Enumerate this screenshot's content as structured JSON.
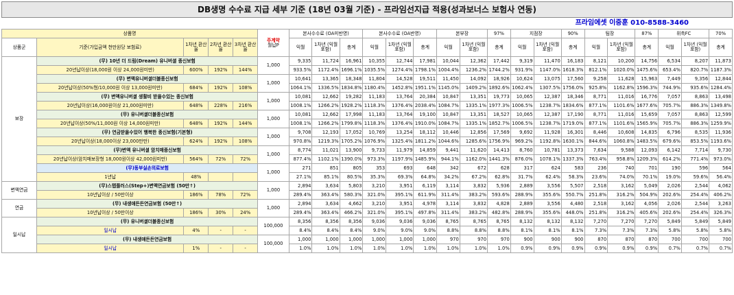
{
  "title": "DB생명 수수료 지급 세부 기준 (18년 03월 기준) - 프라임선지급 적용(성과보너스 보험사 연동)",
  "contact": "프라임에셋 이중훈 010-8588-3460",
  "header": {
    "product": "상품명",
    "category": "상품군",
    "criteria": "기준(가입금액 천만원당 보험료)",
    "hw1": "1차년 환산율",
    "hw2": "2차년 환산율",
    "hw3": "3차년 환산율",
    "premium_top": "주계약",
    "premium_bottom": "월납P",
    "groups": [
      {
        "name": "본사수수료 (OA미반영)",
        "pct": ""
      },
      {
        "name": "본사수수료 (OA반영)",
        "pct": ""
      },
      {
        "name": "본부장",
        "pct": "97%"
      },
      {
        "name": "지점장",
        "pct": "90%"
      },
      {
        "name": "팀장",
        "pct": "87%"
      },
      {
        "name": "위촉FC",
        "pct": "70%"
      }
    ],
    "sub": [
      "익월",
      "1차년 (익월포함)",
      "총계"
    ]
  },
  "categories": {
    "bojang": "보장",
    "byeonaek": "변액연금",
    "yeongeum": "연금",
    "ilsinap": "일시납"
  },
  "rows": [
    {
      "name": "(무) 10년 더 드림(Dream) 유니버셜 종신보험",
      "crit": "20년납이상(18,000원 이상 24,000원미만)",
      "h1": "600%",
      "h2": "192%",
      "h3": "144%",
      "prem": "1,000",
      "v1": [
        "9,335",
        "11,724",
        "16,961",
        "10,355",
        "12,744",
        "17,981",
        "10,044",
        "12,362",
        "17,442",
        "9,319",
        "11,470",
        "16,183",
        "8,121",
        "10,200",
        "14,756",
        "6,534",
        "8,207",
        "11,873"
      ],
      "v2": [
        "933.5%",
        "1172.4%",
        "1696.1%",
        "1035.5%",
        "1274.4%",
        "1798.1%",
        "1004.4%",
        "1236.2%",
        "1744.2%",
        "931.9%",
        "1147.0%",
        "1618.3%",
        "812.1%",
        "1020.0%",
        "1475.6%",
        "653.4%",
        "820.7%",
        "1187.3%"
      ]
    },
    {
      "name": "(무) 변액유니버셜더블종신보험",
      "crit": "20년납이상(50%형/10,000원 이상 13,000원미만)",
      "h1": "684%",
      "h2": "192%",
      "h3": "108%",
      "prem": "1,000",
      "v1": [
        "10,641",
        "13,365",
        "18,348",
        "11,804",
        "14,528",
        "19,511",
        "11,450",
        "14,092",
        "18,926",
        "10,624",
        "13,075",
        "17,560",
        "9,258",
        "11,628",
        "15,963",
        "7,449",
        "9,356",
        "12,844"
      ],
      "v2": [
        "1064.1%",
        "1336.5%",
        "1834.8%",
        "1180.4%",
        "1452.8%",
        "1951.1%",
        "1145.0%",
        "1409.2%",
        "1892.6%",
        "1062.4%",
        "1307.5%",
        "1756.0%",
        "925.8%",
        "1162.8%",
        "1596.3%",
        "744.9%",
        "935.6%",
        "1284.4%"
      ]
    },
    {
      "name": "(무) 변액유니버셜 생활비 받을수있는 종신보험",
      "crit": "20년납이상(16,000원이상 21,000원미만)",
      "h1": "648%",
      "h2": "228%",
      "h3": "216%",
      "prem": "1,000",
      "v1": [
        "10,081",
        "12,662",
        "19,282",
        "11,183",
        "13,764",
        "20,384",
        "10,847",
        "13,351",
        "19,773",
        "10,065",
        "12,387",
        "18,346",
        "8,771",
        "11,016",
        "16,776",
        "7,057",
        "8,863",
        "13,498"
      ],
      "v2": [
        "1008.1%",
        "1266.2%",
        "1928.2%",
        "1118.3%",
        "1376.4%",
        "2038.4%",
        "1084.7%",
        "1335.1%",
        "1977.3%",
        "1006.5%",
        "1238.7%",
        "1834.6%",
        "877.1%",
        "1101.6%",
        "1677.6%",
        "705.7%",
        "886.3%",
        "1349.8%"
      ]
    },
    {
      "name": "(무) 유니버셜더블종신보험",
      "crit": "20년납이상(50%/11,000원 이상 14,000원미만)",
      "h1": "648%",
      "h2": "192%",
      "h3": "144%",
      "prem": "1,000",
      "v1": [
        "10,081",
        "12,662",
        "17,998",
        "11,183",
        "13,764",
        "19,100",
        "10,847",
        "13,351",
        "18,527",
        "10,065",
        "12,387",
        "17,190",
        "8,771",
        "11,016",
        "15,659",
        "7,057",
        "8,863",
        "12,599"
      ],
      "v2": [
        "1008.1%",
        "1266.2%",
        "1799.8%",
        "1118.3%",
        "1376.4%",
        "1910.0%",
        "1084.7%",
        "1335.1%",
        "1852.7%",
        "1006.5%",
        "1238.7%",
        "1719.0%",
        "877.1%",
        "1101.6%",
        "1565.9%",
        "705.7%",
        "886.3%",
        "1259.9%"
      ]
    },
    {
      "name": "(무) 연금받을수있어 행복한 종신보험(기본형)",
      "crit": "20년납이상(18,000이상 23,000만만)",
      "h1": "624%",
      "h2": "192%",
      "h3": "108%",
      "prem": "1,000",
      "v1": [
        "9,708",
        "12,193",
        "17,052",
        "10,769",
        "13,254",
        "18,112",
        "10,446",
        "12,856",
        "17,569",
        "9,692",
        "11,928",
        "16,301",
        "8,446",
        "10,608",
        "14,835",
        "6,796",
        "8,535",
        "11,936"
      ],
      "v2": [
        "970.8%",
        "1219.3%",
        "1705.2%",
        "1076.9%",
        "1325.4%",
        "1811.2%",
        "1044.6%",
        "1285.6%",
        "1756.9%",
        "969.2%",
        "1192.8%",
        "1630.1%",
        "844.6%",
        "1060.8%",
        "1483.5%",
        "679.6%",
        "853.5%",
        "1193.6%"
      ]
    },
    {
      "name": "(무)변액 유니버셜 암치매종신보험",
      "crit": "20년납이상(암치매보장형 18,000원이상 42,000원미만)",
      "h1": "564%",
      "h2": "72%",
      "h3": "72%",
      "prem": "1,000",
      "v1": [
        "8,774",
        "11,021",
        "13,900",
        "9,733",
        "11,979",
        "14,859",
        "9,441",
        "11,620",
        "14,413",
        "8,760",
        "10,781",
        "13,373",
        "7,634",
        "9,588",
        "12,093",
        "6,142",
        "7,714",
        "9,730"
      ],
      "v2": [
        "877.4%",
        "1102.1%",
        "1390.0%",
        "973.3%",
        "1197.9%",
        "1485.9%",
        "944.1%",
        "1162.0%",
        "1441.3%",
        "876.0%",
        "1078.1%",
        "1337.3%",
        "763.4%",
        "958.8%",
        "1209.3%",
        "614.2%",
        "771.4%",
        "973.0%"
      ]
    },
    {
      "name": "(무)동부실손의료보험",
      "crit": "1년납",
      "h1": "48%",
      "h2": "",
      "h3": "",
      "prem": "1,000",
      "v1": [
        "271",
        "851",
        "805",
        "353",
        "693",
        "648",
        "342",
        "672",
        "628",
        "317",
        "624",
        "583",
        "236",
        "740",
        "701",
        "190",
        "596",
        "564"
      ],
      "v2": [
        "27.1%",
        "85.1%",
        "80.5%",
        "35.3%",
        "69.3%",
        "64.8%",
        "34.2%",
        "67.2%",
        "62.8%",
        "31.7%",
        "62.4%",
        "58.3%",
        "23.6%",
        "74.0%",
        "70.1%",
        "19.0%",
        "59.6%",
        "56.4%"
      ]
    },
    {
      "name": "(무)스텝플러스(Step+)변액연금보험 (50만↑)",
      "crit": "10년납이상 / 50만이상",
      "h1": "186%",
      "h2": "78%",
      "h3": "72%",
      "prem": "1,000",
      "v1": [
        "2,894",
        "3,634",
        "5,803",
        "3,210",
        "3,951",
        "6,119",
        "3,114",
        "3,832",
        "5,936",
        "2,889",
        "3,556",
        "5,507",
        "2,518",
        "3,162",
        "5,049",
        "2,026",
        "2,544",
        "4,062"
      ],
      "v2": [
        "289.4%",
        "363.4%",
        "580.3%",
        "321.0%",
        "395.1%",
        "611.9%",
        "311.4%",
        "383.2%",
        "593.6%",
        "288.9%",
        "355.6%",
        "550.7%",
        "251.8%",
        "316.2%",
        "504.9%",
        "202.6%",
        "254.4%",
        "406.2%"
      ]
    },
    {
      "name": "(무) 내생애든든연금보험 (50만↑)",
      "crit": "10년납이상 / 50만이상",
      "h1": "186%",
      "h2": "30%",
      "h3": "24%",
      "prem": "1,000",
      "v1": [
        "2,894",
        "3,634",
        "4,662",
        "3,210",
        "3,951",
        "4,978",
        "3,114",
        "3,832",
        "4,828",
        "2,889",
        "3,556",
        "4,480",
        "2,518",
        "3,162",
        "4,056",
        "2,026",
        "2,544",
        "3,263"
      ],
      "v2": [
        "289.4%",
        "363.4%",
        "466.2%",
        "321.0%",
        "395.1%",
        "497.8%",
        "311.4%",
        "383.2%",
        "482.8%",
        "288.9%",
        "355.6%",
        "448.0%",
        "251.8%",
        "316.2%",
        "405.6%",
        "202.6%",
        "254.4%",
        "326.3%"
      ]
    },
    {
      "name": "(무) 유니버셜더블종신보험",
      "crit": "일시납",
      "h1": "4%",
      "h2": "-",
      "h3": "-",
      "prem": "100,000",
      "v1": [
        "8,356",
        "8,356",
        "8,356",
        "9,036",
        "9,036",
        "9,036",
        "8,765",
        "8,765",
        "8,765",
        "8,132",
        "8,132",
        "8,132",
        "7,270",
        "7,270",
        "7,270",
        "5,849",
        "5,849",
        "5,849"
      ],
      "v2": [
        "8.4%",
        "8.4%",
        "8.4%",
        "9.0%",
        "9.0%",
        "9.0%",
        "8.8%",
        "8.8%",
        "8.8%",
        "8.1%",
        "8.1%",
        "8.1%",
        "7.3%",
        "7.3%",
        "7.3%",
        "5.8%",
        "5.8%",
        "5.8%"
      ]
    },
    {
      "name": "(무) 내생애든든연금보험",
      "crit": "일시납",
      "h1": "1%",
      "h2": "-",
      "h3": "-",
      "prem": "100,000",
      "v1": [
        "1,000",
        "1,000",
        "1,000",
        "1,000",
        "1,000",
        "1,000",
        "970",
        "970",
        "970",
        "900",
        "900",
        "900",
        "870",
        "870",
        "870",
        "700",
        "700",
        "700"
      ],
      "v2": [
        "1.0%",
        "1.0%",
        "1.0%",
        "1.0%",
        "1.0%",
        "1.0%",
        "1.0%",
        "1.0%",
        "1.0%",
        "0.9%",
        "0.9%",
        "0.9%",
        "0.9%",
        "0.9%",
        "0.9%",
        "0.7%",
        "0.7%",
        "0.7%"
      ]
    }
  ],
  "colors": {
    "yellow": "#fff7c2",
    "green": "#eaf3e2",
    "blue": "#dcebf7",
    "red": "#e00000",
    "contact": "#0000d0"
  }
}
